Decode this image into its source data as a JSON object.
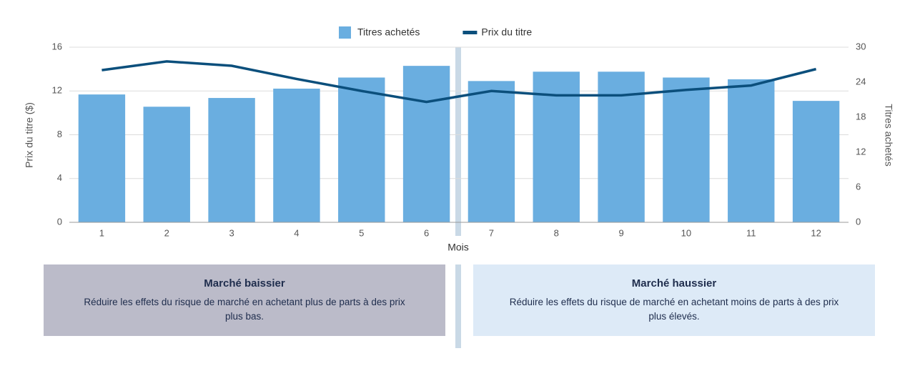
{
  "chart_data": {
    "type": "combo",
    "x_label": "Mois",
    "y_label": "Prix du titre ($)",
    "y2_label": "Titres achetés",
    "categories": [
      "1",
      "2",
      "3",
      "4",
      "5",
      "6",
      "7",
      "8",
      "9",
      "10",
      "11",
      "12"
    ],
    "series": [
      {
        "name": "Titres achetés",
        "type": "bar",
        "axis": "y2",
        "color": "#6aaee0",
        "values": [
          21.9,
          19.8,
          21.3,
          22.9,
          24.8,
          26.8,
          24.2,
          25.8,
          25.8,
          24.8,
          24.5,
          20.8
        ]
      },
      {
        "name": "Prix du titre",
        "type": "line",
        "axis": "y",
        "color": "#0b4f7c",
        "values": [
          13.9,
          14.7,
          14.3,
          13.1,
          12.0,
          11.0,
          12.0,
          11.6,
          11.6,
          12.1,
          12.5,
          14.0
        ]
      }
    ],
    "ylim": [
      0,
      16
    ],
    "yticks": [
      0,
      4,
      8,
      12,
      16
    ],
    "y2lim": [
      0,
      30
    ],
    "y2ticks": [
      0,
      6,
      12,
      18,
      24,
      30
    ],
    "grid": true
  },
  "panels": [
    {
      "title": "Marché baissier",
      "text": "Réduire les effets du risque de marché en achetant plus de parts à des prix plus bas."
    },
    {
      "title": "Marché haussier",
      "text": "Réduire les effets du risque de marché en achetant moins de parts à des prix plus élevés."
    }
  ]
}
